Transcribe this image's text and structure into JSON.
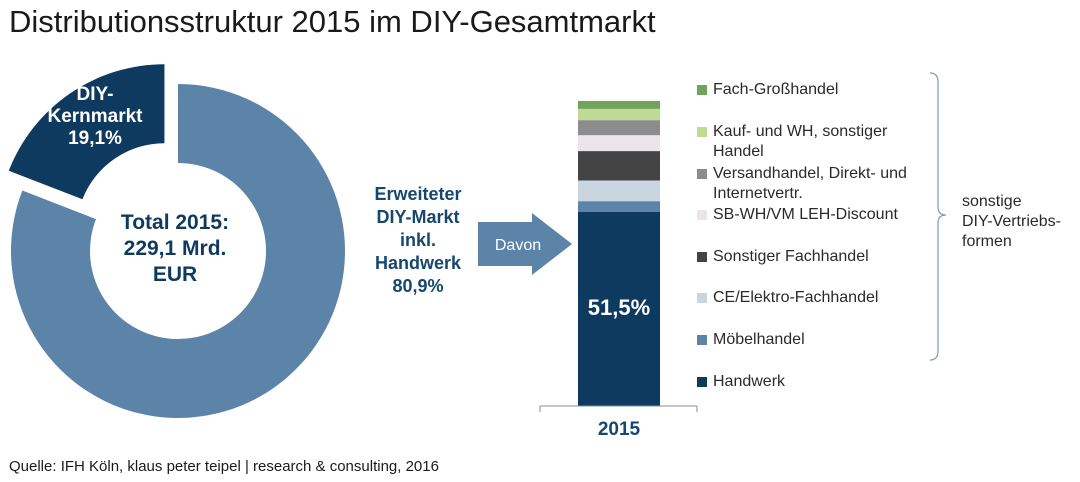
{
  "title": "Distributionsstruktur 2015 im DIY-Gesamtmarkt",
  "source": "Quelle: IFH Köln, klaus peter teipel | research & consulting, 2016",
  "chart_data": [
    {
      "type": "pie",
      "variant": "donut",
      "slices": [
        {
          "label": "DIY-Kernmarkt",
          "value": 19.1,
          "value_label": "19,1%",
          "color": "#0f3a5f",
          "exploded": true
        },
        {
          "label": "Erweiteter DIY-Markt inkl. Handwerk",
          "value": 80.9,
          "value_label": "80,9%",
          "color": "#5b84a8"
        }
      ],
      "center_text": [
        "Total 2015:",
        "229,1 Mrd.",
        "EUR"
      ],
      "kern_label": [
        "DIY-",
        "Kernmarkt",
        "19,1%"
      ],
      "erw_label": [
        "Erweiteter",
        "DIY-Markt",
        "inkl.",
        "Handwerk",
        "80,9%"
      ]
    },
    {
      "type": "bar",
      "stacked": true,
      "categories": [
        "2015"
      ],
      "series": [
        {
          "name": "Handwerk",
          "value": 51.5,
          "color": "#0f3a5f"
        },
        {
          "name": "Möbelhandel",
          "value": 2.8,
          "color": "#5b84a8"
        },
        {
          "name": "CE/Elektro-Fachhandel",
          "value": 5.5,
          "color": "#c9d6e0"
        },
        {
          "name": "Sonstiger Fachhandel",
          "value": 7.8,
          "color": "#444444"
        },
        {
          "name": "SB-WH/VM LEH-Discount",
          "value": 4.2,
          "color": "#ece4e8"
        },
        {
          "name": "Versandhandel, Direkt- und Internetvertr.",
          "value": 4.0,
          "color": "#8c8c8c"
        },
        {
          "name": "Kauf- und WH, sonstiger Handel",
          "value": 3.0,
          "color": "#bfda92"
        },
        {
          "name": "Fach-Großhandel",
          "value": 2.1,
          "color": "#71a35d"
        }
      ],
      "value_label": "51,5%",
      "year_label": "2015",
      "brace_label": [
        "sonstige",
        "DIY-Vertriebs-",
        "formen"
      ]
    }
  ],
  "arrow_label": "Davon"
}
